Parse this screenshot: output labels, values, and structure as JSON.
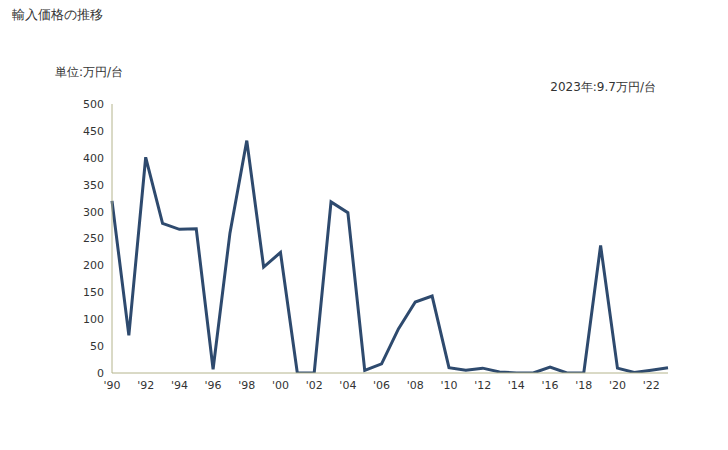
{
  "chart_data": {
    "type": "line",
    "title": "輸入価格の推移",
    "y_label": "単位:万円/台",
    "annotations": [
      "2023年:9.7万円/台"
    ],
    "categories": [
      "'90",
      null,
      "'92",
      null,
      "'94",
      null,
      "'96",
      null,
      "'98",
      null,
      "'00",
      null,
      "'02",
      null,
      "'04",
      null,
      "'06",
      null,
      "'08",
      null,
      "'10",
      null,
      "'12",
      null,
      "'14",
      null,
      "'16",
      null,
      "'18",
      null,
      "'20",
      null,
      "'22",
      null
    ],
    "values": [
      320,
      70,
      401,
      278,
      267,
      268,
      7,
      260,
      432,
      197,
      224,
      0,
      0,
      318,
      298,
      5,
      17,
      82,
      132,
      143,
      10,
      5,
      9,
      2,
      0,
      0,
      11,
      0,
      0,
      237,
      9,
      1,
      5,
      9.7
    ],
    "color": "#2e4a6e",
    "ylim": [
      0,
      500
    ],
    "yticks": [
      0,
      50,
      100,
      150,
      200,
      250,
      300,
      350,
      400,
      450,
      500
    ],
    "grid": false
  }
}
